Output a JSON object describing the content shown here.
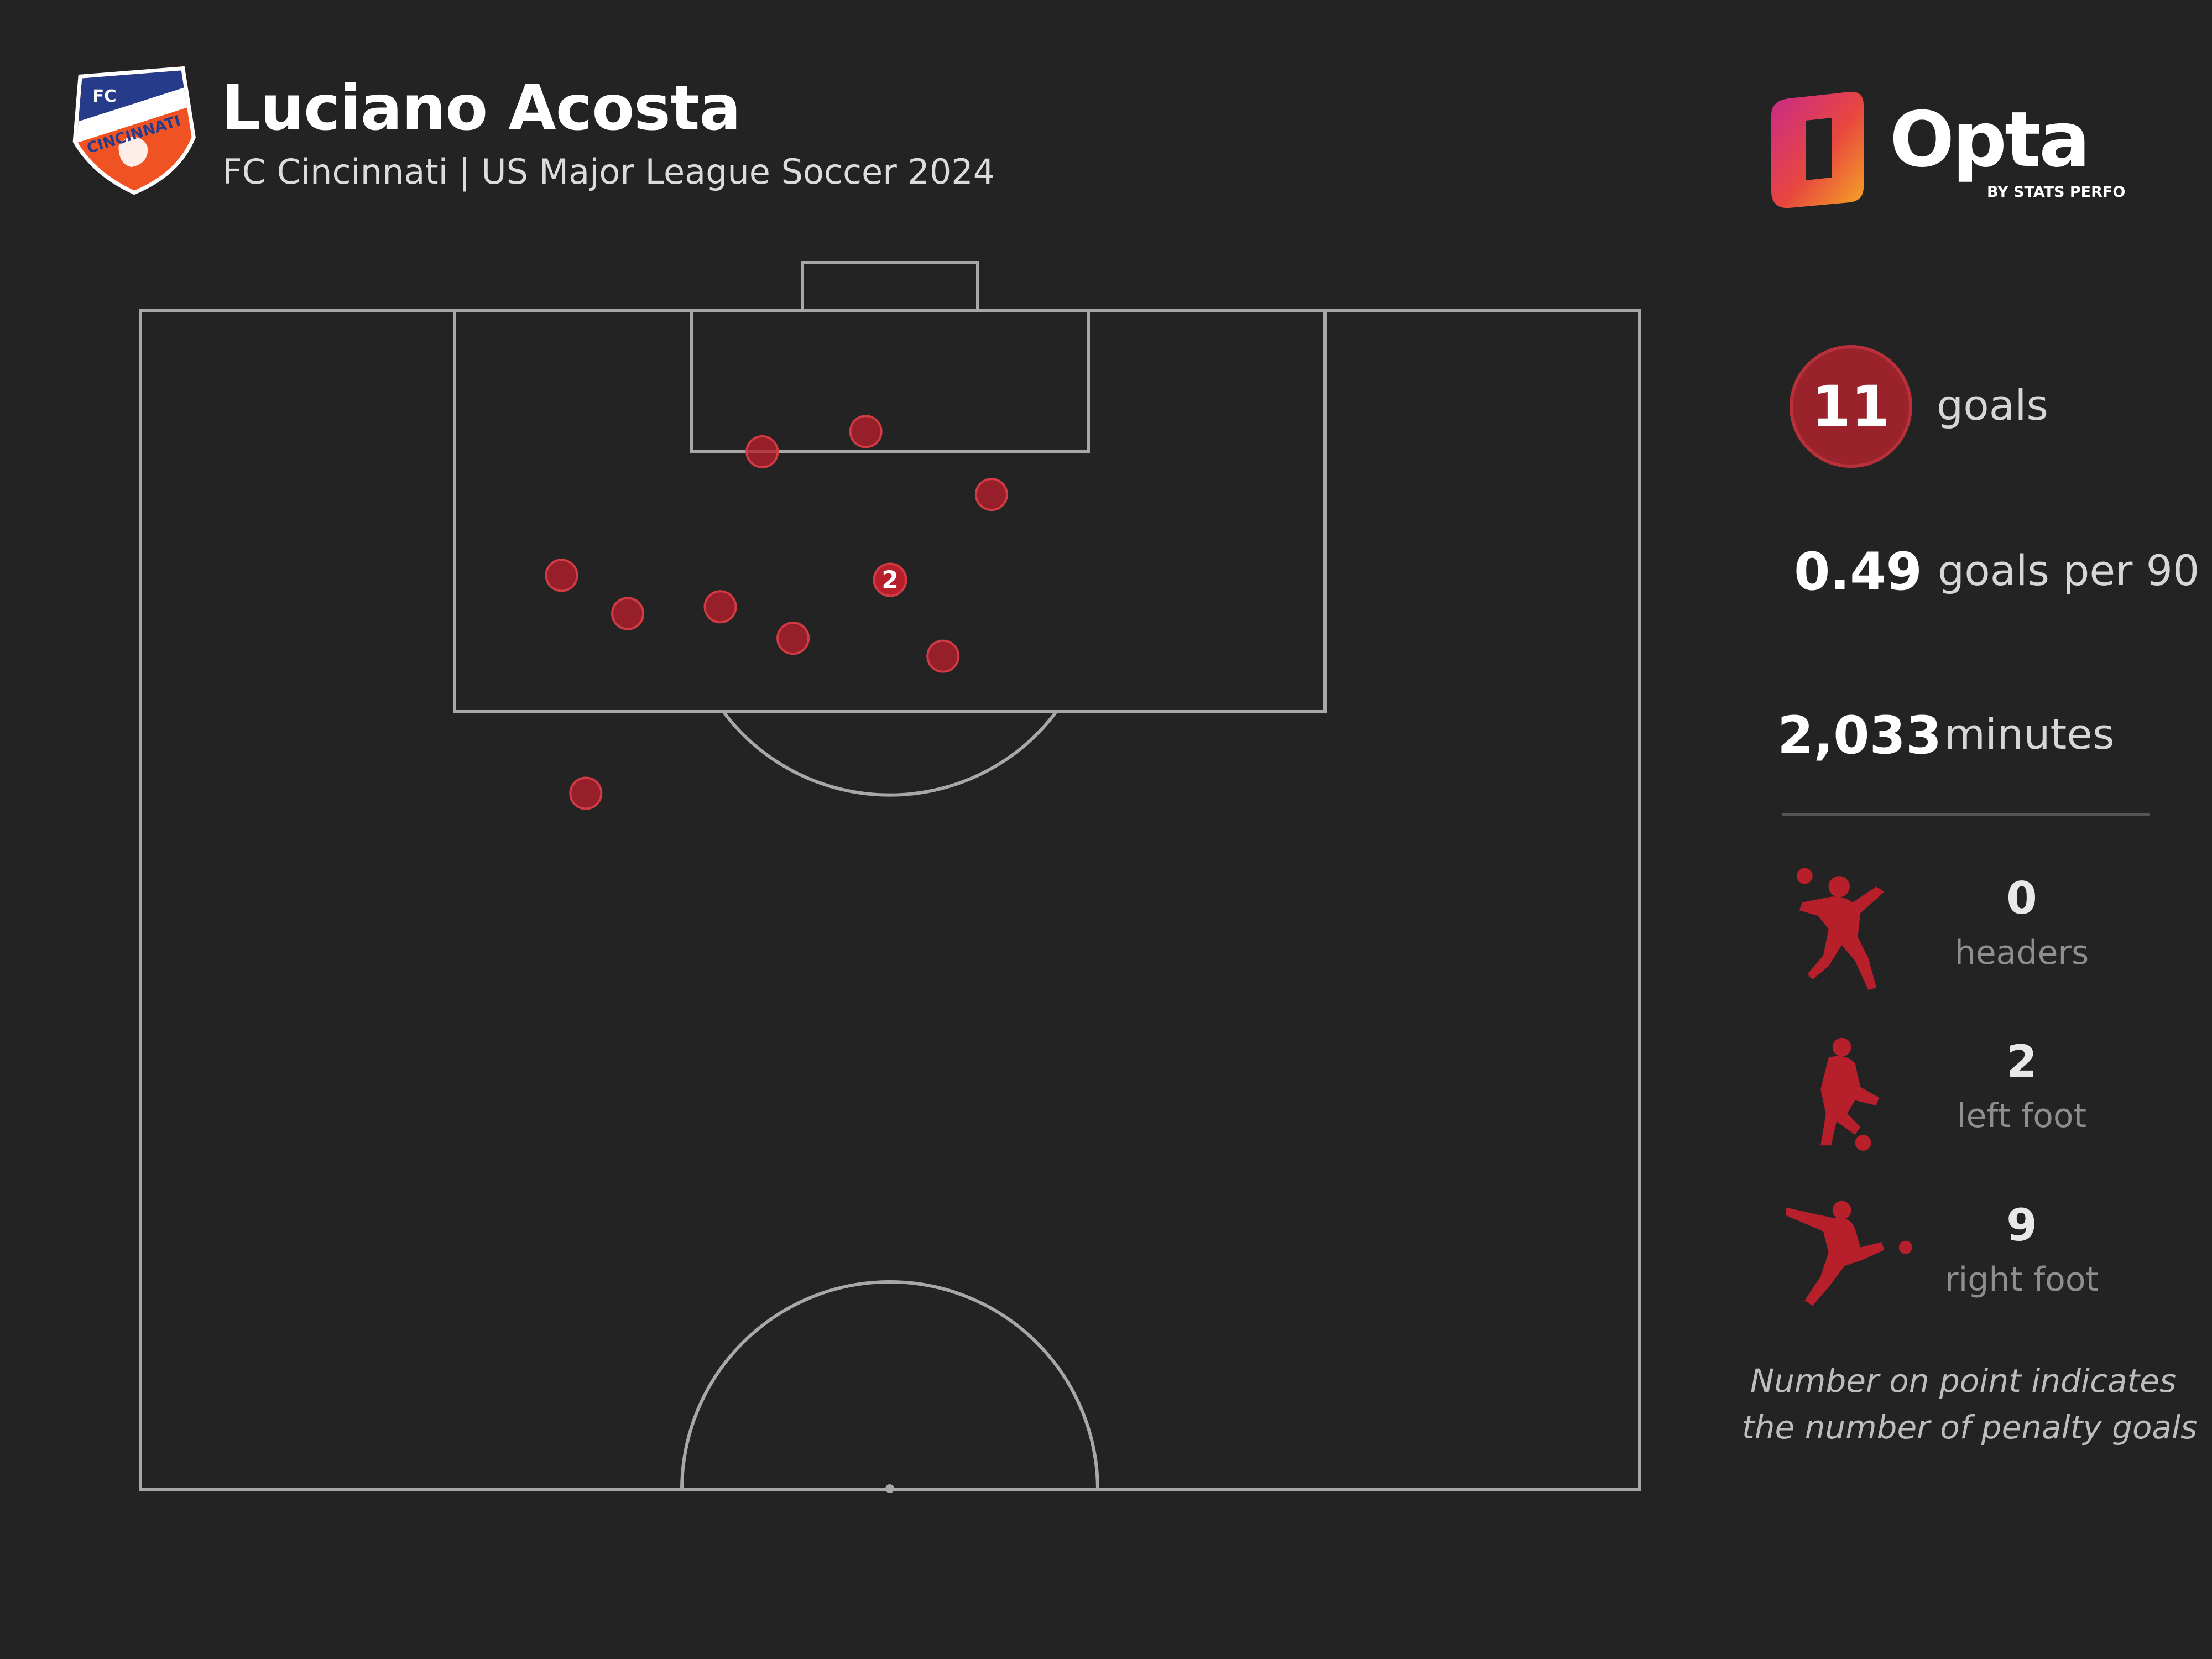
{
  "header": {
    "player_name": "Luciano Acosta",
    "subtitle": "FC Cincinnati | US Major League Soccer 2024",
    "crest": {
      "icon": "fc-cincinnati-crest-icon",
      "text_top": "FC",
      "text_band": "CINCINNATI",
      "colors": {
        "blue": "#263b8a",
        "orange": "#f05323"
      }
    },
    "brand": {
      "icon": "opta-logo-icon",
      "name": "Opta",
      "tagline": "BY STATS PERFORM"
    }
  },
  "stats": {
    "goals": {
      "value": "11",
      "label": "goals"
    },
    "goals_per_90": {
      "value": "0.49",
      "label": "goals per 90"
    },
    "minutes": {
      "value": "2,033",
      "label": "minutes"
    },
    "body_parts": [
      {
        "icon": "header-player-icon",
        "value": "0",
        "label": "headers"
      },
      {
        "icon": "left-foot-player-icon",
        "value": "2",
        "label": "left foot"
      },
      {
        "icon": "right-foot-player-icon",
        "value": "9",
        "label": "right foot"
      }
    ],
    "footnote_lines": [
      "Number on point indicates",
      "the number of penalty goals"
    ]
  },
  "colors": {
    "background": "#232323",
    "pitch_lines": "#a8a8a8",
    "goal_dot": "#b71f2b",
    "goal_dot_edge": "#d23a44",
    "badge": "#9a232b"
  },
  "chart_data": {
    "type": "scatter",
    "pitch": "attacking half, 68 wide x 52.5 deep, goal at top",
    "x_range": [
      0,
      68
    ],
    "y_range_distance_from_goal_line": [
      0,
      52.5
    ],
    "goals": [
      {
        "x": 28.2,
        "y": 6.3
      },
      {
        "x": 32.9,
        "y": 5.4
      },
      {
        "x": 38.6,
        "y": 8.2
      },
      {
        "x": 19.1,
        "y": 11.8
      },
      {
        "x": 22.1,
        "y": 13.5
      },
      {
        "x": 26.3,
        "y": 13.2
      },
      {
        "x": 29.6,
        "y": 14.6
      },
      {
        "x": 36.4,
        "y": 15.4
      },
      {
        "x": 20.2,
        "y": 21.5
      },
      {
        "x": 34.0,
        "y": 12.0,
        "label": "2",
        "penalty_goals": 2
      }
    ]
  }
}
